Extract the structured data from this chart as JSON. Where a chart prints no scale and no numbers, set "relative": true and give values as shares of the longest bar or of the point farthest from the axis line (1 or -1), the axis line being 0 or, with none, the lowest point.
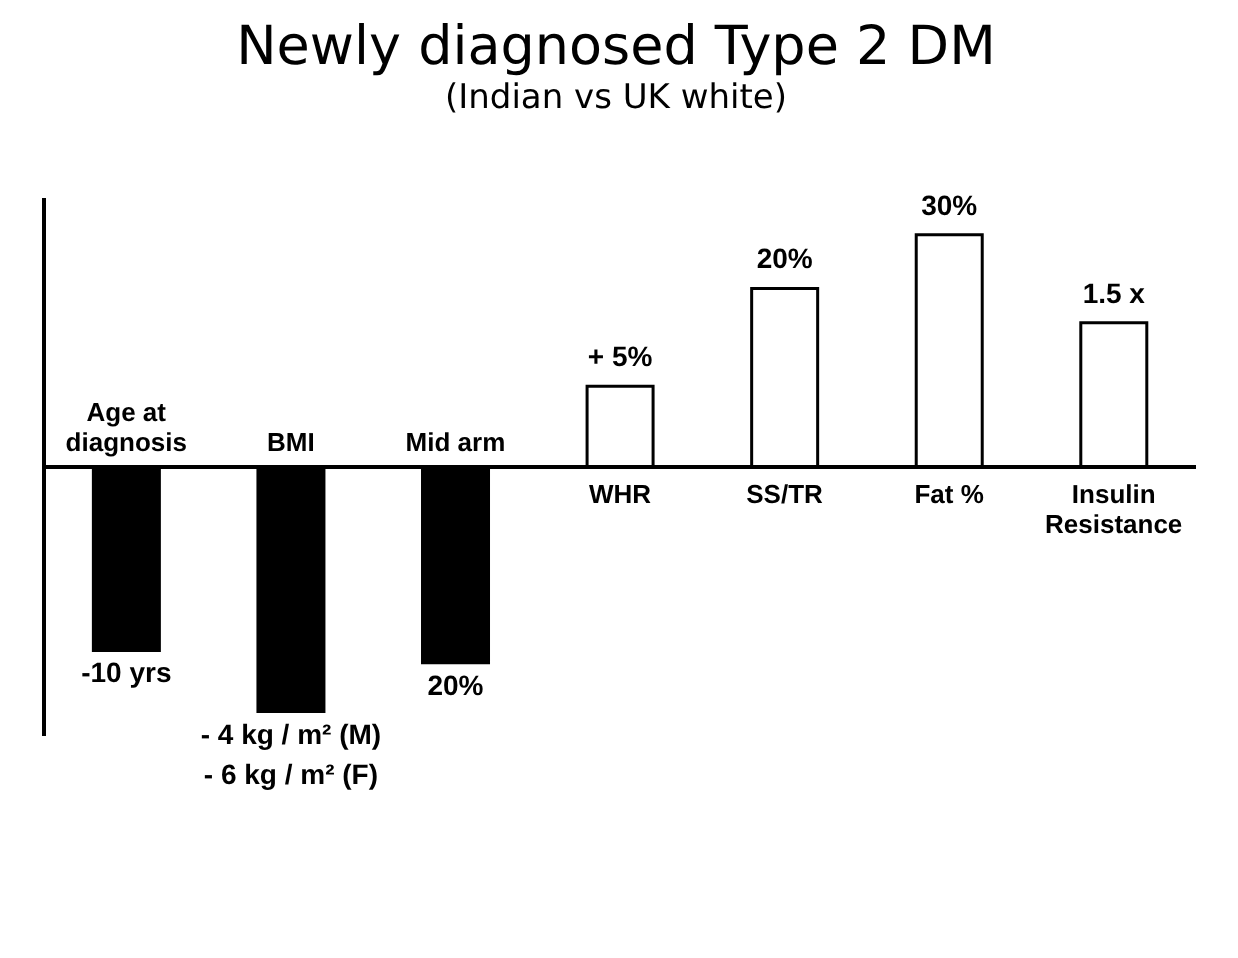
{
  "chart_data": {
    "type": "bar",
    "title": "Newly diagnosed Type 2 DM",
    "subtitle": "(Indian vs UK white)",
    "categories": [
      "Age at diagnosis",
      "BMI",
      "Mid arm",
      "WHR",
      "SS/TR",
      "Fat %",
      "Insulin Resistance"
    ],
    "values": [
      -0.75,
      -1,
      -0.8,
      0.33,
      0.73,
      0.95,
      0.59
    ],
    "colors": [
      "#000000",
      "#000000",
      "#000000",
      "#ffffff",
      "#ffffff",
      "#ffffff",
      "#ffffff"
    ],
    "annotations": [
      {
        "text": "-10 yrs",
        "x": "Age at diagnosis",
        "y": -0.75
      },
      {
        "text": "- 4 kg / m² (M)\n- 6 kg / m² (F)",
        "x": "BMI",
        "y": -1
      },
      {
        "text": "20%",
        "x": "Mid arm",
        "y": -0.8
      },
      {
        "text": "+ 5%",
        "x": "WHR",
        "y": 0.33
      },
      {
        "text": "20%",
        "x": "SS/TR",
        "y": 0.73
      },
      {
        "text": "30%",
        "x": "Fat %",
        "y": 0.95
      },
      {
        "text": "1.5 x",
        "x": "Insulin Resistance",
        "y": 0.59
      }
    ],
    "relative": true,
    "grid": false,
    "legend": false
  }
}
